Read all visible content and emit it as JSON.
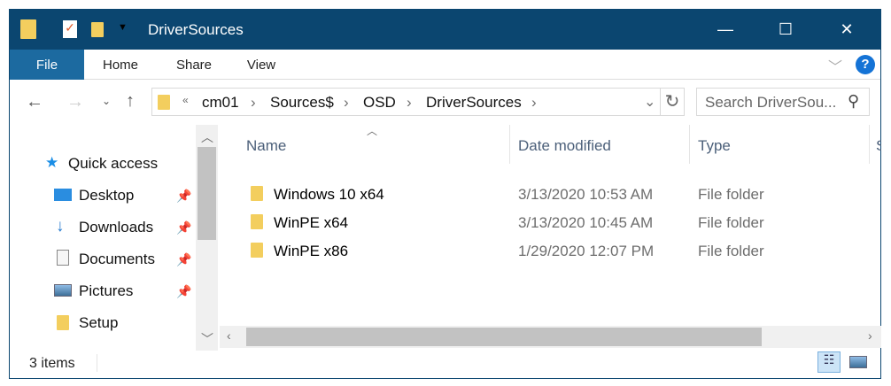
{
  "window": {
    "title": "DriverSources",
    "minimize": "—",
    "maximize": "☐",
    "close": "✕"
  },
  "ribbon": {
    "tabs": [
      "File",
      "Home",
      "Share",
      "View"
    ],
    "help": "?"
  },
  "address": {
    "overflow": "«",
    "crumbs": [
      "cm01",
      "Sources$",
      "OSD",
      "DriverSources"
    ],
    "search_placeholder": "Search DriverSou..."
  },
  "nav": {
    "quick_access": "Quick access",
    "items": [
      {
        "label": "Desktop",
        "pinned": true,
        "icon": "desktop-icon"
      },
      {
        "label": "Downloads",
        "pinned": true,
        "icon": "download-icon"
      },
      {
        "label": "Documents",
        "pinned": true,
        "icon": "document-icon"
      },
      {
        "label": "Pictures",
        "pinned": true,
        "icon": "pictures-icon"
      },
      {
        "label": "Setup",
        "pinned": false,
        "icon": "folder-icon"
      }
    ]
  },
  "columns": [
    "Name",
    "Date modified",
    "Type",
    "S"
  ],
  "files": [
    {
      "name": "Windows 10 x64",
      "date": "3/13/2020 10:53 AM",
      "type": "File folder"
    },
    {
      "name": "WinPE x64",
      "date": "3/13/2020 10:45 AM",
      "type": "File folder"
    },
    {
      "name": "WinPE x86",
      "date": "1/29/2020 12:07 PM",
      "type": "File folder"
    }
  ],
  "status": {
    "count": "3 items"
  },
  "colors": {
    "titlebar": "#0b4670",
    "file_tab": "#1c6aa0",
    "folder": "#f3ce5e"
  }
}
